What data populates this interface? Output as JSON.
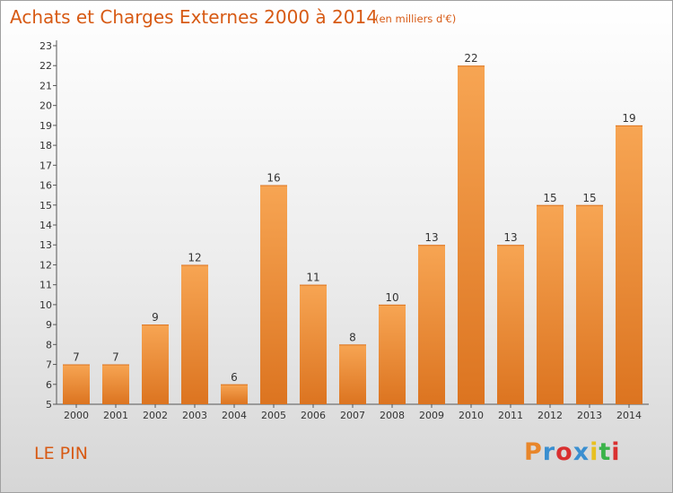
{
  "header": {
    "title": "Achats et Charges Externes 2000 à 2014",
    "unit": "(en milliers d'€)"
  },
  "footer": {
    "commune": "LE PIN",
    "logo": "Proxiti",
    "logo_colors": [
      "#e8862a",
      "#3a8fd0",
      "#d93030",
      "#3a8fd0",
      "#e8c020",
      "#3bb34a",
      "#d93030"
    ]
  },
  "chart_data": {
    "type": "bar",
    "categories": [
      "2000",
      "2001",
      "2002",
      "2003",
      "2004",
      "2005",
      "2006",
      "2007",
      "2008",
      "2009",
      "2010",
      "2011",
      "2012",
      "2013",
      "2014"
    ],
    "values": [
      7,
      7,
      9,
      12,
      6,
      16,
      11,
      8,
      10,
      13,
      22,
      13,
      15,
      15,
      19
    ],
    "ylim": [
      5,
      23
    ],
    "yticks": [
      5,
      6,
      7,
      8,
      9,
      10,
      11,
      12,
      13,
      14,
      15,
      16,
      17,
      18,
      19,
      20,
      21,
      22,
      23
    ],
    "grid": false,
    "data_labels": true,
    "bar_color": "#ee8a2e",
    "bar_color_light": "#f7a553",
    "bar_color_dark": "#dc7420"
  }
}
